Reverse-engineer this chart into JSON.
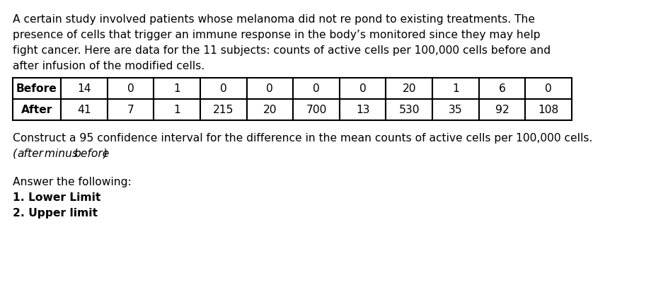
{
  "line1": "A certain study involved patients whose melanoma did not re pond to existing treatments. The",
  "line2": "presence of cells that trigger an immune response in the body’s monitored since they may help",
  "line3": "fight cancer. Here are data for the 11 subjects: counts of active cells per 100,000 cells before and",
  "line4": "after infusion of the modified cells.",
  "before_values": [
    "14",
    "0",
    "1",
    "0",
    "0",
    "0",
    "0",
    "20",
    "1",
    "6",
    "0"
  ],
  "after_values": [
    "41",
    "7",
    "1",
    "215",
    "20",
    "700",
    "13",
    "530",
    "35",
    "92",
    "108"
  ],
  "p2_line1": "Construct a 95 confidence interval for the difference in the mean counts of active cells per 100,000 cells.",
  "p2_line2_italic": "(after minus before)",
  "p3": "Answer the following:",
  "item1": "1. Lower Limit",
  "item2": "2. Upper limit",
  "bg_color": "#ffffff",
  "text_color": "#000000",
  "font_size": 11.2,
  "table_font_size": 11.2
}
